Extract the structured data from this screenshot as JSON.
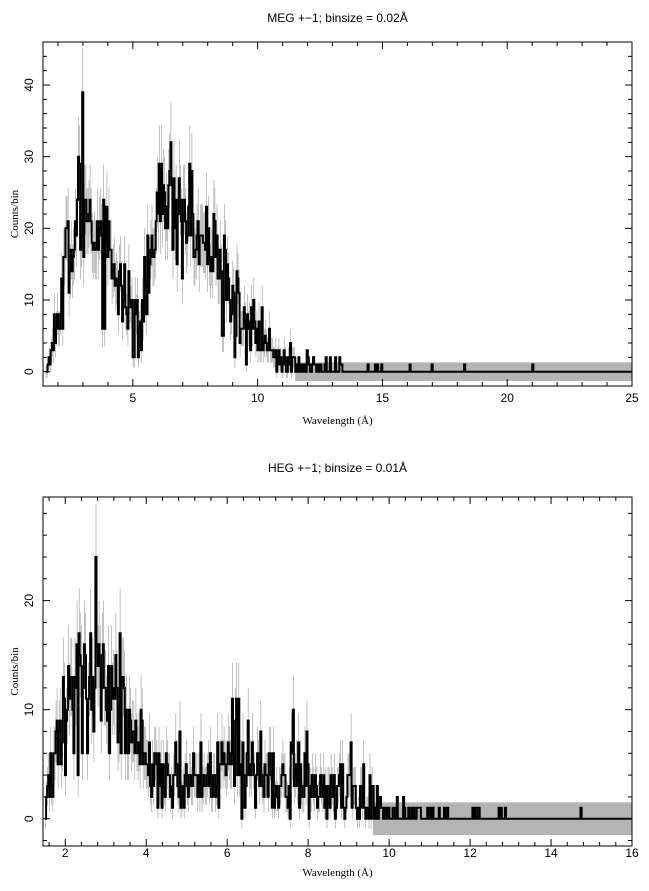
{
  "chart_data": [
    {
      "type": "line",
      "title": "MEG +−1; binsize = 0.02Å",
      "xlabel": "Wavelength (Å)",
      "ylabel": "Counts/bin",
      "xlim": [
        1.4,
        25
      ],
      "ylim": [
        -2,
        46
      ],
      "xticks": [
        5,
        10,
        15,
        20,
        25
      ],
      "yticks": [
        0,
        10,
        20,
        30,
        40
      ],
      "xtick_labels": [
        "5",
        "10",
        "15",
        "20",
        "25"
      ],
      "ytick_labels": [
        "0",
        "10",
        "20",
        "30",
        "40"
      ],
      "grid": false,
      "error_band": {
        "from_x": 11.5,
        "low": -1.3,
        "high": 1.3
      },
      "envelope": {
        "x": [
          1.5,
          1.7,
          2.0,
          2.3,
          2.6,
          2.9,
          3.1,
          3.4,
          3.7,
          4.0,
          4.3,
          4.7,
          5.0,
          5.3,
          5.6,
          5.9,
          6.1,
          6.3,
          6.6,
          6.9,
          7.2,
          7.6,
          8.0,
          8.5,
          9.0,
          9.5,
          10.0,
          10.5,
          11.0,
          11.5,
          12.0,
          12.5,
          13.0,
          14.0,
          15.0,
          17.0,
          20.0,
          25.0
        ],
        "y": [
          0,
          2,
          7,
          14,
          19,
          23,
          24,
          21,
          19,
          17,
          15,
          12,
          9,
          8,
          13,
          20,
          23,
          25,
          24,
          22,
          21,
          19,
          17,
          14,
          10,
          7,
          5,
          3,
          2,
          1.2,
          0.8,
          0.5,
          0.3,
          0.2,
          0.1,
          0.05,
          0.03,
          0
        ],
        "peak": 39
      }
    },
    {
      "type": "line",
      "title": "HEG +−1; binsize = 0.01Å",
      "xlabel": "Wavelength (Å)",
      "ylabel": "Counts/bin",
      "xlim": [
        1.45,
        16
      ],
      "ylim": [
        -2.5,
        29.5
      ],
      "xticks": [
        2,
        4,
        6,
        8,
        10,
        12,
        14,
        16
      ],
      "yticks": [
        0,
        10,
        20
      ],
      "xtick_labels": [
        "2",
        "4",
        "6",
        "8",
        "10",
        "12",
        "14",
        "16"
      ],
      "ytick_labels": [
        "0",
        "10",
        "20"
      ],
      "grid": false,
      "error_band": {
        "from_x": 9.6,
        "low": -1.5,
        "high": 1.5
      },
      "envelope": {
        "x": [
          1.5,
          1.6,
          1.8,
          2.0,
          2.3,
          2.6,
          2.9,
          3.2,
          3.5,
          3.8,
          4.1,
          4.5,
          5.0,
          5.5,
          5.8,
          6.0,
          6.2,
          6.5,
          7.0,
          7.5,
          8.0,
          8.5,
          9.0,
          9.5,
          10.0,
          10.5,
          11.0,
          12.0,
          13.0,
          16.0
        ],
        "y": [
          0,
          3,
          7,
          10,
          11,
          12,
          12,
          11,
          9,
          7,
          5,
          4,
          3,
          3,
          4,
          5,
          6,
          5,
          4,
          3.5,
          3,
          2.5,
          2,
          1.3,
          0.8,
          0.5,
          0.3,
          0.15,
          0.05,
          0
        ],
        "peak": 24
      }
    }
  ]
}
